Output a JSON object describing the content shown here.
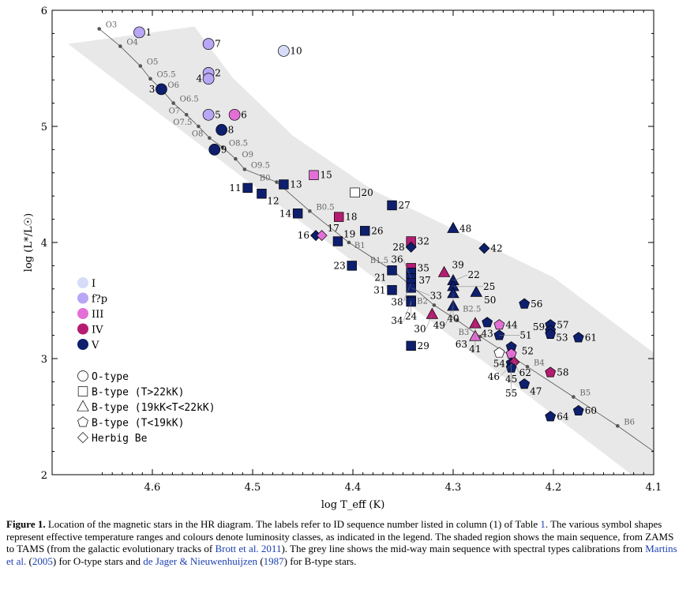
{
  "chart_data": {
    "type": "scatter",
    "title": "",
    "xlabel": "log T_eff (K)",
    "ylabel": "log (L*/L☉)",
    "xlim": [
      4.7,
      4.1
    ],
    "ylim": [
      2,
      6
    ],
    "x_reversed": true,
    "xticks": [
      "4.6",
      "4.5",
      "4.4",
      "4.3",
      "4.2",
      "4.1"
    ],
    "xtick_values": [
      4.6,
      4.5,
      4.4,
      4.3,
      4.2,
      4.1
    ],
    "yticks": [
      "2",
      "3",
      "4",
      "5",
      "6"
    ],
    "ytick_values": [
      2,
      3,
      4,
      5,
      6
    ],
    "grid": false,
    "legend_placement": "left",
    "colors": {
      "I": "#d6dcf8",
      "f?p": "#b9a6f4",
      "III": "#e36fd6",
      "IV": "#b51c72",
      "V": "#0e1f6e",
      "white": "#ffffff"
    },
    "legend_classes": [
      {
        "key": "I",
        "label": "I"
      },
      {
        "key": "f?p",
        "label": "f?p"
      },
      {
        "key": "III",
        "label": "III"
      },
      {
        "key": "IV",
        "label": "IV"
      },
      {
        "key": "V",
        "label": "V"
      }
    ],
    "legend_shapes": [
      {
        "shape": "circle",
        "label": "O-type"
      },
      {
        "shape": "square",
        "label": "B-type (T>22kK)"
      },
      {
        "shape": "triangle",
        "label": "B-type (19kK<T<22kK)"
      },
      {
        "shape": "pentagon",
        "label": "B-type (T<19kK)"
      },
      {
        "shape": "diamond",
        "label": "Herbig Be"
      }
    ],
    "main_sequence_band": [
      [
        4.684,
        5.71
      ],
      [
        4.558,
        5.86
      ],
      [
        4.52,
        5.42
      ],
      [
        4.46,
        4.92
      ],
      [
        4.38,
        4.45
      ],
      [
        4.2,
        3.7
      ],
      [
        4.1,
        3.05
      ],
      [
        4.1,
        2.0
      ],
      [
        4.122,
        2.0
      ]
    ],
    "main_sequence_line": [
      {
        "label": "O3",
        "x": 4.653,
        "y": 5.84
      },
      {
        "label": "O4",
        "x": 4.632,
        "y": 5.69
      },
      {
        "label": "O5",
        "x": 4.612,
        "y": 5.52
      },
      {
        "label": "O5.5",
        "x": 4.602,
        "y": 5.41
      },
      {
        "label": "O6",
        "x": 4.591,
        "y": 5.32
      },
      {
        "label": "O6.5",
        "x": 4.579,
        "y": 5.2
      },
      {
        "label": "O7",
        "x": 4.566,
        "y": 5.1
      },
      {
        "label": "O7.5",
        "x": 4.554,
        "y": 5.0
      },
      {
        "label": "O8",
        "x": 4.543,
        "y": 4.9
      },
      {
        "label": "O8.5",
        "x": 4.53,
        "y": 4.82
      },
      {
        "label": "O9",
        "x": 4.517,
        "y": 4.72
      },
      {
        "label": "O9.5",
        "x": 4.508,
        "y": 4.63
      },
      {
        "label": "B0",
        "x": 4.476,
        "y": 4.52
      },
      {
        "label": "B0.5",
        "x": 4.443,
        "y": 4.27
      },
      {
        "label": "B1",
        "x": 4.404,
        "y": 4.0
      },
      {
        "label": "B1.5",
        "x": 4.359,
        "y": 3.75
      },
      {
        "label": "B2",
        "x": 4.319,
        "y": 3.46
      },
      {
        "label": "B2.5",
        "x": 4.296,
        "y": 3.33
      },
      {
        "label": "B3",
        "x": 4.273,
        "y": 3.19
      },
      {
        "label": "B4",
        "x": 4.226,
        "y": 2.93
      },
      {
        "label": "B5",
        "x": 4.18,
        "y": 2.67
      },
      {
        "label": "B6",
        "x": 4.136,
        "y": 2.42
      }
    ],
    "line_end": [
      4.1,
      2.2
    ],
    "stars": [
      {
        "id": "1",
        "x": 4.613,
        "y": 5.81,
        "shape": "circle",
        "cls": "f?p"
      },
      {
        "id": "7",
        "x": 4.544,
        "y": 5.71,
        "shape": "circle",
        "cls": "f?p"
      },
      {
        "id": "2",
        "x": 4.544,
        "y": 5.46,
        "shape": "circle",
        "cls": "f?p"
      },
      {
        "id": "4",
        "x": 4.544,
        "y": 5.41,
        "shape": "circle",
        "cls": "f?p"
      },
      {
        "id": "10",
        "x": 4.469,
        "y": 5.65,
        "shape": "circle",
        "cls": "I"
      },
      {
        "id": "3",
        "x": 4.591,
        "y": 5.32,
        "shape": "circle",
        "cls": "V"
      },
      {
        "id": "5",
        "x": 4.544,
        "y": 5.1,
        "shape": "circle",
        "cls": "f?p"
      },
      {
        "id": "6",
        "x": 4.518,
        "y": 5.1,
        "shape": "circle",
        "cls": "III"
      },
      {
        "id": "8",
        "x": 4.531,
        "y": 4.97,
        "shape": "circle",
        "cls": "V"
      },
      {
        "id": "9",
        "x": 4.538,
        "y": 4.8,
        "shape": "circle",
        "cls": "V"
      },
      {
        "id": "11",
        "x": 4.505,
        "y": 4.47,
        "shape": "square",
        "cls": "V"
      },
      {
        "id": "12",
        "x": 4.491,
        "y": 4.42,
        "shape": "square",
        "cls": "V"
      },
      {
        "id": "13",
        "x": 4.469,
        "y": 4.5,
        "shape": "square",
        "cls": "V"
      },
      {
        "id": "15",
        "x": 4.439,
        "y": 4.58,
        "shape": "square",
        "cls": "III"
      },
      {
        "id": "20",
        "x": 4.398,
        "y": 4.43,
        "shape": "square",
        "cls": "white"
      },
      {
        "id": "14",
        "x": 4.455,
        "y": 4.25,
        "shape": "square",
        "cls": "V"
      },
      {
        "id": "18",
        "x": 4.414,
        "y": 4.22,
        "shape": "square",
        "cls": "IV"
      },
      {
        "id": "27",
        "x": 4.361,
        "y": 4.32,
        "shape": "square",
        "cls": "V"
      },
      {
        "id": "26",
        "x": 4.388,
        "y": 4.1,
        "shape": "square",
        "cls": "V"
      },
      {
        "id": "16",
        "x": 4.437,
        "y": 4.06,
        "shape": "diamond",
        "cls": "V"
      },
      {
        "id": "17",
        "x": 4.431,
        "y": 4.06,
        "shape": "diamond",
        "cls": "III"
      },
      {
        "id": "19",
        "x": 4.415,
        "y": 4.01,
        "shape": "square",
        "cls": "V"
      },
      {
        "id": "48",
        "x": 4.3,
        "y": 4.12,
        "shape": "triangle",
        "cls": "V"
      },
      {
        "id": "32",
        "x": 4.342,
        "y": 4.01,
        "shape": "square",
        "cls": "IV"
      },
      {
        "id": "28",
        "x": 4.342,
        "y": 3.96,
        "shape": "diamond",
        "cls": "V"
      },
      {
        "id": "42",
        "x": 4.269,
        "y": 3.95,
        "shape": "diamond",
        "cls": "V"
      },
      {
        "id": "23",
        "x": 4.401,
        "y": 3.8,
        "shape": "square",
        "cls": "V"
      },
      {
        "id": "21",
        "x": 4.361,
        "y": 3.76,
        "shape": "square",
        "cls": "V"
      },
      {
        "id": "35",
        "x": 4.342,
        "y": 3.78,
        "shape": "square",
        "cls": "IV"
      },
      {
        "id": "37",
        "x": 4.342,
        "y": 3.74,
        "shape": "square",
        "cls": "V"
      },
      {
        "id": "36",
        "x": 4.342,
        "y": 3.69,
        "shape": "square",
        "cls": "V"
      },
      {
        "id": "38",
        "x": 4.342,
        "y": 3.65,
        "shape": "square",
        "cls": "V"
      },
      {
        "id": "33",
        "x": 4.342,
        "y": 3.61,
        "shape": "square",
        "cls": "V"
      },
      {
        "id": "31",
        "x": 4.361,
        "y": 3.59,
        "shape": "square",
        "cls": "V"
      },
      {
        "id": "39",
        "x": 4.309,
        "y": 3.74,
        "shape": "triangle",
        "cls": "IV"
      },
      {
        "id": "22",
        "x": 4.3,
        "y": 3.67,
        "shape": "triangle",
        "cls": "V"
      },
      {
        "id": "25",
        "x": 4.3,
        "y": 3.62,
        "shape": "triangle",
        "cls": "V"
      },
      {
        "id": "40",
        "x": 4.3,
        "y": 3.56,
        "shape": "triangle",
        "cls": "V"
      },
      {
        "id": "50",
        "x": 4.277,
        "y": 3.57,
        "shape": "triangle",
        "cls": "V"
      },
      {
        "id": "24",
        "x": 4.342,
        "y": 3.5,
        "shape": "square",
        "cls": "V"
      },
      {
        "id": "34",
        "x": 4.342,
        "y": 3.49,
        "shape": "square",
        "cls": "V"
      },
      {
        "id": "49",
        "x": 4.3,
        "y": 3.45,
        "shape": "triangle",
        "cls": "V"
      },
      {
        "id": "30",
        "x": 4.321,
        "y": 3.38,
        "shape": "triangle",
        "cls": "IV"
      },
      {
        "id": "29",
        "x": 4.342,
        "y": 3.11,
        "shape": "square",
        "cls": "V"
      },
      {
        "id": "43",
        "x": 4.266,
        "y": 3.31,
        "shape": "pentagon",
        "cls": "V"
      },
      {
        "id": "44",
        "x": 4.254,
        "y": 3.29,
        "shape": "pentagon",
        "cls": "III"
      },
      {
        "id": "41",
        "x": 4.278,
        "y": 3.3,
        "shape": "triangle",
        "cls": "IV"
      },
      {
        "id": "63",
        "x": 4.278,
        "y": 3.19,
        "shape": "triangle",
        "cls": "III"
      },
      {
        "id": "51",
        "x": 4.254,
        "y": 3.2,
        "shape": "pentagon",
        "cls": "V"
      },
      {
        "id": "52",
        "x": 4.242,
        "y": 3.1,
        "shape": "pentagon",
        "cls": "V"
      },
      {
        "id": "54",
        "x": 4.254,
        "y": 3.05,
        "shape": "pentagon",
        "cls": "white"
      },
      {
        "id": "62",
        "x": 4.242,
        "y": 3.04,
        "shape": "pentagon",
        "cls": "III"
      },
      {
        "id": "45",
        "x": 4.242,
        "y": 2.96,
        "shape": "pentagon",
        "cls": "V"
      },
      {
        "id": "46",
        "x": 4.239,
        "y": 2.97,
        "shape": "diamond",
        "cls": "IV"
      },
      {
        "id": "55",
        "x": 4.242,
        "y": 2.92,
        "shape": "pentagon",
        "cls": "V"
      },
      {
        "id": "47",
        "x": 4.229,
        "y": 2.78,
        "shape": "pentagon",
        "cls": "V"
      },
      {
        "id": "56",
        "x": 4.229,
        "y": 3.47,
        "shape": "pentagon",
        "cls": "V"
      },
      {
        "id": "57",
        "x": 4.203,
        "y": 3.29,
        "shape": "pentagon",
        "cls": "V"
      },
      {
        "id": "53",
        "x": 4.203,
        "y": 3.24,
        "shape": "pentagon",
        "cls": "V"
      },
      {
        "id": "59",
        "x": 4.203,
        "y": 3.21,
        "shape": "pentagon",
        "cls": "V"
      },
      {
        "id": "61",
        "x": 4.175,
        "y": 3.18,
        "shape": "pentagon",
        "cls": "V"
      },
      {
        "id": "58",
        "x": 4.203,
        "y": 2.88,
        "shape": "pentagon",
        "cls": "IV"
      },
      {
        "id": "64",
        "x": 4.203,
        "y": 2.5,
        "shape": "pentagon",
        "cls": "V"
      },
      {
        "id": "60",
        "x": 4.175,
        "y": 2.55,
        "shape": "pentagon",
        "cls": "V"
      }
    ]
  },
  "caption": {
    "fig": "Figure 1.",
    "t1": " Location of the magnetic stars in the HR diagram. The labels refer to ID sequence number listed in column (1) of Table ",
    "link_table": "1",
    "t2": ". The various symbol shapes represent effective temperature ranges and colours denote luminosity classes, as indicated in the legend. The shaded region shows the main sequence, from ZAMS to TAMS (from the galactic evolutionary tracks of ",
    "link_brott": "Brott et al. 2011",
    "t3": "). The grey line shows the mid-way main sequence with spectral types calibrations from ",
    "link_martins": "Martins et al.",
    "t4": " (",
    "link_martins_year": "2005",
    "t5": ") for O-type stars and ",
    "link_dejager": "de Jager & Nieuwenhuijzen",
    "t6": " (",
    "link_dejager_year": "1987",
    "t7": ") for B-type stars."
  }
}
